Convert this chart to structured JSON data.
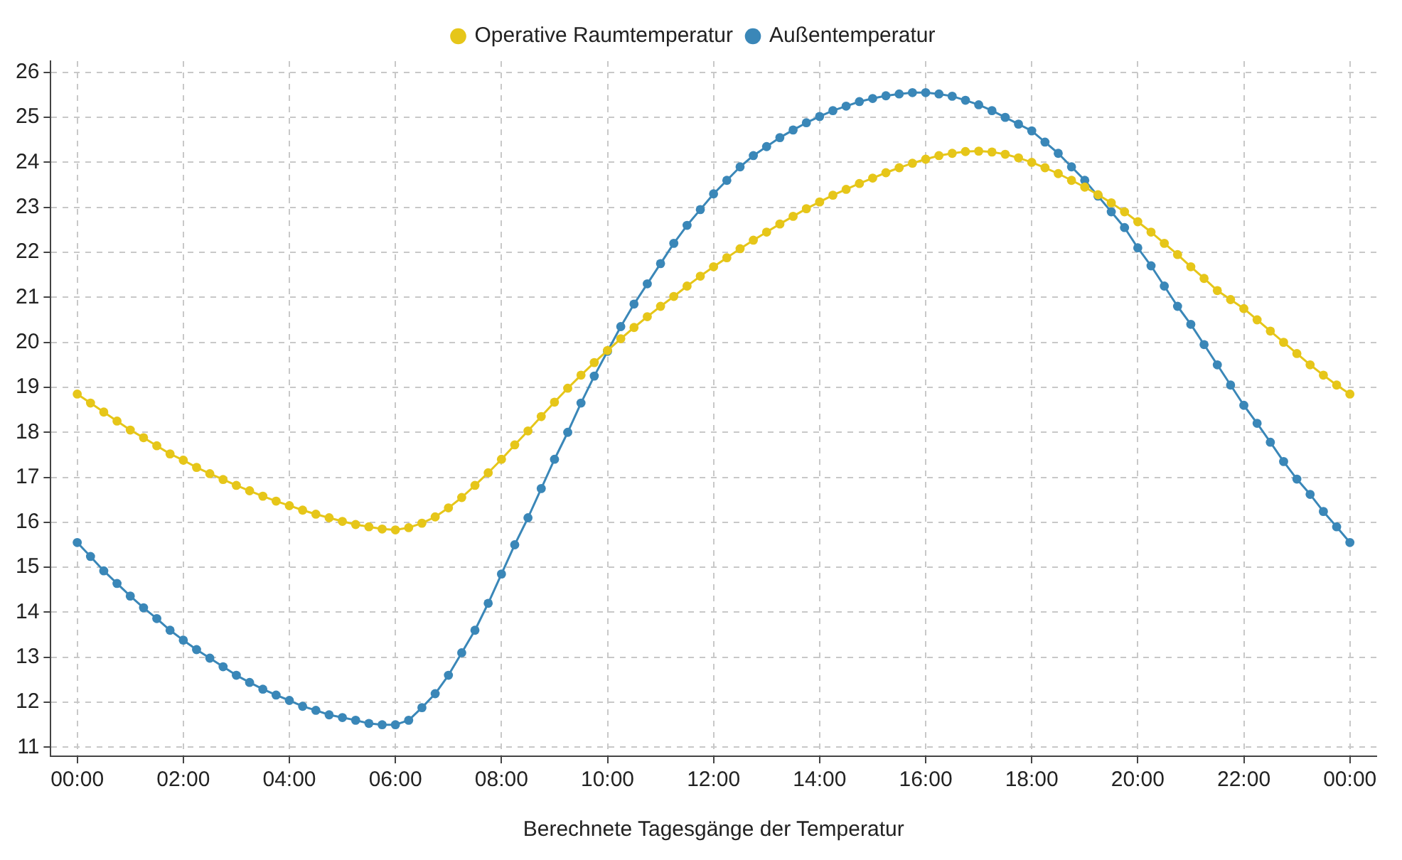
{
  "chart_data": {
    "type": "line",
    "xlabel": "Berechnete Tagesgänge der Temperatur",
    "legend": "top",
    "grid": true,
    "marker": "circle",
    "xlim": [
      -0.5,
      24.5
    ],
    "xticks": [
      {
        "value": 0,
        "label": "00:00"
      },
      {
        "value": 2,
        "label": "02:00"
      },
      {
        "value": 4,
        "label": "04:00"
      },
      {
        "value": 6,
        "label": "06:00"
      },
      {
        "value": 8,
        "label": "08:00"
      },
      {
        "value": 10,
        "label": "10:00"
      },
      {
        "value": 12,
        "label": "12:00"
      },
      {
        "value": 14,
        "label": "14:00"
      },
      {
        "value": 16,
        "label": "16:00"
      },
      {
        "value": 18,
        "label": "18:00"
      },
      {
        "value": 20,
        "label": "20:00"
      },
      {
        "value": 22,
        "label": "22:00"
      },
      {
        "value": 24,
        "label": "00:00"
      }
    ],
    "ylim": [
      10.8,
      26.25
    ],
    "yticks": [
      11,
      12,
      13,
      14,
      15,
      16,
      17,
      18,
      19,
      20,
      21,
      22,
      23,
      24,
      25,
      26
    ],
    "x": [
      0,
      0.25,
      0.5,
      0.75,
      1,
      1.25,
      1.5,
      1.75,
      2,
      2.25,
      2.5,
      2.75,
      3,
      3.25,
      3.5,
      3.75,
      4,
      4.25,
      4.5,
      4.75,
      5,
      5.25,
      5.5,
      5.75,
      6,
      6.25,
      6.5,
      6.75,
      7,
      7.25,
      7.5,
      7.75,
      8,
      8.25,
      8.5,
      8.75,
      9,
      9.25,
      9.5,
      9.75,
      10,
      10.25,
      10.5,
      10.75,
      11,
      11.25,
      11.5,
      11.75,
      12,
      12.25,
      12.5,
      12.75,
      13,
      13.25,
      13.5,
      13.75,
      14,
      14.25,
      14.5,
      14.75,
      15,
      15.25,
      15.5,
      15.75,
      16,
      16.25,
      16.5,
      16.75,
      17,
      17.25,
      17.5,
      17.75,
      18,
      18.25,
      18.5,
      18.75,
      19,
      19.25,
      19.5,
      19.75,
      20,
      20.25,
      20.5,
      20.75,
      21,
      21.25,
      21.5,
      21.75,
      22,
      22.25,
      22.5,
      22.75,
      23,
      23.25,
      23.5,
      23.75,
      24
    ],
    "series": [
      {
        "name": "Operative Raumtemperatur",
        "color": "#e6c619",
        "values": [
          18.85,
          18.65,
          18.45,
          18.25,
          18.05,
          17.88,
          17.7,
          17.52,
          17.38,
          17.22,
          17.08,
          16.95,
          16.82,
          16.7,
          16.58,
          16.47,
          16.37,
          16.27,
          16.18,
          16.1,
          16.02,
          15.95,
          15.9,
          15.85,
          15.83,
          15.88,
          15.98,
          16.12,
          16.32,
          16.55,
          16.82,
          17.1,
          17.4,
          17.72,
          18.03,
          18.35,
          18.67,
          18.98,
          19.27,
          19.55,
          19.82,
          20.08,
          20.33,
          20.57,
          20.8,
          21.02,
          21.25,
          21.47,
          21.68,
          21.88,
          22.08,
          22.27,
          22.45,
          22.63,
          22.8,
          22.97,
          23.12,
          23.27,
          23.4,
          23.53,
          23.65,
          23.77,
          23.88,
          23.98,
          24.07,
          24.15,
          24.2,
          24.24,
          24.25,
          24.23,
          24.18,
          24.1,
          24.0,
          23.88,
          23.75,
          23.6,
          23.45,
          23.28,
          23.1,
          22.9,
          22.68,
          22.45,
          22.2,
          21.95,
          21.68,
          21.42,
          21.15,
          20.95,
          20.75,
          20.5,
          20.25,
          20.0,
          19.75,
          19.5,
          19.27,
          19.05,
          18.85
        ]
      },
      {
        "name": "Außentemperatur",
        "color": "#3a87b8",
        "values": [
          15.55,
          15.24,
          14.92,
          14.64,
          14.36,
          14.1,
          13.86,
          13.6,
          13.38,
          13.17,
          12.98,
          12.79,
          12.6,
          12.44,
          12.29,
          12.16,
          12.04,
          11.91,
          11.82,
          11.72,
          11.66,
          11.6,
          11.53,
          11.5,
          11.5,
          11.6,
          11.88,
          12.19,
          12.6,
          13.1,
          13.6,
          14.2,
          14.85,
          15.5,
          16.1,
          16.75,
          17.4,
          18.0,
          18.65,
          19.25,
          19.8,
          20.35,
          20.85,
          21.3,
          21.75,
          22.2,
          22.6,
          22.95,
          23.3,
          23.6,
          23.9,
          24.15,
          24.35,
          24.55,
          24.72,
          24.88,
          25.02,
          25.15,
          25.25,
          25.35,
          25.42,
          25.48,
          25.52,
          25.55,
          25.55,
          25.52,
          25.47,
          25.38,
          25.28,
          25.15,
          25.0,
          24.85,
          24.7,
          24.45,
          24.2,
          23.9,
          23.6,
          23.25,
          22.9,
          22.55,
          22.1,
          21.7,
          21.25,
          20.8,
          20.4,
          19.95,
          19.5,
          19.05,
          18.6,
          18.2,
          17.78,
          17.35,
          16.96,
          16.62,
          16.24,
          15.9,
          15.55
        ]
      }
    ]
  }
}
